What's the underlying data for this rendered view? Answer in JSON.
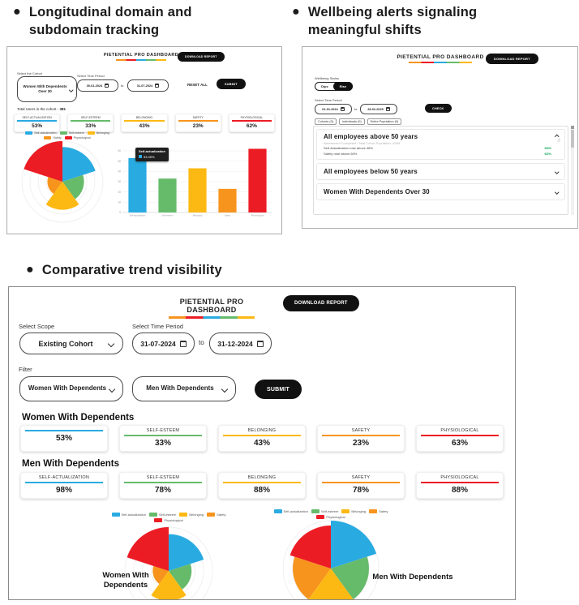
{
  "page": {
    "bullet1": "Longitudinal domain and subdomain tracking",
    "bullet2": "Wellbeing alerts signaling meaningful shifts",
    "bullet3": "Comparative trend visibility"
  },
  "colors": {
    "self_actualization": "#29abe2",
    "self_esteem": "#66bb6a",
    "belonging": "#fdb913",
    "safety": "#f7941d",
    "physiological": "#ec1c24",
    "positive": "#00a651",
    "pill": "#111111"
  },
  "legend": {
    "items": [
      {
        "label": "Self-actualization",
        "color": "#29abe2"
      },
      {
        "label": "Self-esteem",
        "color": "#66bb6a"
      },
      {
        "label": "Belonging",
        "color": "#fdb913"
      },
      {
        "label": "Safety",
        "color": "#f7941d"
      },
      {
        "label": "Physiological",
        "color": "#ec1c24"
      }
    ]
  },
  "panel1": {
    "title": "PIETENTIAL PRO DASHBOARD",
    "download_report": "DOWNLOAD REPORT",
    "cohort_label": "Select the Cohort",
    "cohort_value": "Women With Dependents Over 30",
    "period_label": "Select Time Period",
    "date_from": "30-01-2024",
    "to": "to",
    "date_to": "31-07-2024",
    "reset_all": "RESET ALL",
    "submit": "SUBMIT",
    "total_label": "Total Users in the cohort -",
    "total_value": "381",
    "metrics": [
      {
        "label": "SELF-ACTUALIZATION",
        "value": "53%",
        "color": "#29abe2"
      },
      {
        "label": "SELF-ESTEEM",
        "value": "33%",
        "color": "#66bb6a"
      },
      {
        "label": "BELONGING",
        "value": "43%",
        "color": "#fdb913"
      },
      {
        "label": "SAFETY",
        "value": "23%",
        "color": "#f7941d"
      },
      {
        "label": "PHYSIOLOGICAL",
        "value": "62%",
        "color": "#ec1c24"
      }
    ],
    "tooltip": {
      "title": "Self-actualization",
      "value": "53.35%"
    }
  },
  "panel2": {
    "title": "PIETENTIAL PRO DASHBOARD",
    "download_report": "DOWNLOAD REPORT",
    "status_label": "Wellbeing Status",
    "toggle_dips": "Dips",
    "toggle_rise": "Rise",
    "period_label": "Select Time Period",
    "date_from": "01-01-2024",
    "to": "to",
    "date_to": "28-02-2025",
    "check": "CHECK",
    "chips": [
      "Cohorts (3)",
      "Individuals (0)",
      "Entire Population (0)"
    ],
    "alerts": {
      "item1": {
        "title": "All employees above 50 years",
        "subtitle": "Assessment Completed / Total Cohort Population: 3/308",
        "row1_text": "Self-Actualization rose above 48%",
        "row1_delta": "↑54%",
        "row2_text": "Safety rose above 60%",
        "row2_delta": "↑62%"
      },
      "item2": {
        "title": "All employees below 50 years"
      },
      "item3": {
        "title": "Women With Dependents Over 30"
      }
    }
  },
  "panel3": {
    "title": "PIETENTIAL PRO DASHBOARD",
    "download_report": "DOWNLOAD REPORT",
    "scope_label": "Select Scope",
    "scope_value": "Existing Cohort",
    "period_label": "Select Time Period",
    "date_from": "31-07-2024",
    "to": "to",
    "date_to": "31-12-2024",
    "filter_label": "Filter",
    "filter1": "Women With Dependents",
    "filter2": "Men With Dependents",
    "submit": "SUBMIT",
    "group1": {
      "heading": "Women With Dependents",
      "metrics": [
        {
          "label": "",
          "value": "53%",
          "color": "#29abe2"
        },
        {
          "label": "SELF-ESTEEM",
          "value": "33%",
          "color": "#66bb6a"
        },
        {
          "label": "BELONGING",
          "value": "43%",
          "color": "#fdb913"
        },
        {
          "label": "SAFETY",
          "value": "23%",
          "color": "#f7941d"
        },
        {
          "label": "PHYSIOLOGICAL",
          "value": "63%",
          "color": "#ec1c24"
        }
      ]
    },
    "group2": {
      "heading": "Men With Dependents",
      "metrics": [
        {
          "label": "SELF-ACTUALIZATION",
          "value": "98%",
          "color": "#29abe2"
        },
        {
          "label": "SELF-ESTEEM",
          "value": "78%",
          "color": "#66bb6a"
        },
        {
          "label": "BELONGING",
          "value": "88%",
          "color": "#fdb913"
        },
        {
          "label": "SAFETY",
          "value": "78%",
          "color": "#f7941d"
        },
        {
          "label": "PHYSIOLOGICAL",
          "value": "88%",
          "color": "#ec1c24"
        }
      ]
    },
    "chart1_label": "Women With Dependents",
    "chart2_label": "Men With Dependents"
  },
  "chart_data": [
    {
      "id": "panel1-rose",
      "type": "rose",
      "categories": [
        "Self-actualization",
        "Self-esteem",
        "Belonging",
        "Safety",
        "Physiological"
      ],
      "values": [
        53,
        33,
        43,
        23,
        62
      ],
      "colors": [
        "#29abe2",
        "#66bb6a",
        "#fdb913",
        "#f7941d",
        "#ec1c24"
      ],
      "grid": true,
      "legend_position": "top"
    },
    {
      "id": "panel1-bar",
      "type": "bar",
      "categories": [
        "Self-actualization",
        "Self-esteem",
        "Belonging",
        "Safety",
        "Physiological"
      ],
      "values": [
        53,
        33,
        43,
        23,
        62
      ],
      "colors": [
        "#29abe2",
        "#66bb6a",
        "#fdb913",
        "#f7941d",
        "#ec1c24"
      ],
      "ylim": [
        0,
        60
      ],
      "yticks": [
        0,
        10,
        20,
        30,
        40,
        50,
        60
      ],
      "grid": true
    },
    {
      "id": "panel3-rose-women",
      "type": "rose",
      "label": "Women With Dependents",
      "categories": [
        "Self-actualization",
        "Self-esteem",
        "Belonging",
        "Safety",
        "Physiological"
      ],
      "values": [
        53,
        33,
        43,
        23,
        63
      ],
      "colors": [
        "#29abe2",
        "#66bb6a",
        "#fdb913",
        "#f7941d",
        "#ec1c24"
      ],
      "grid": true,
      "legend_position": "top"
    },
    {
      "id": "panel3-rose-men",
      "type": "rose",
      "label": "Men With Dependents",
      "categories": [
        "Self-actualization",
        "Self-esteem",
        "Belonging",
        "Safety",
        "Physiological"
      ],
      "values": [
        98,
        78,
        88,
        78,
        88
      ],
      "colors": [
        "#29abe2",
        "#66bb6a",
        "#fdb913",
        "#f7941d",
        "#ec1c24"
      ],
      "grid": true,
      "legend_position": "top"
    }
  ]
}
